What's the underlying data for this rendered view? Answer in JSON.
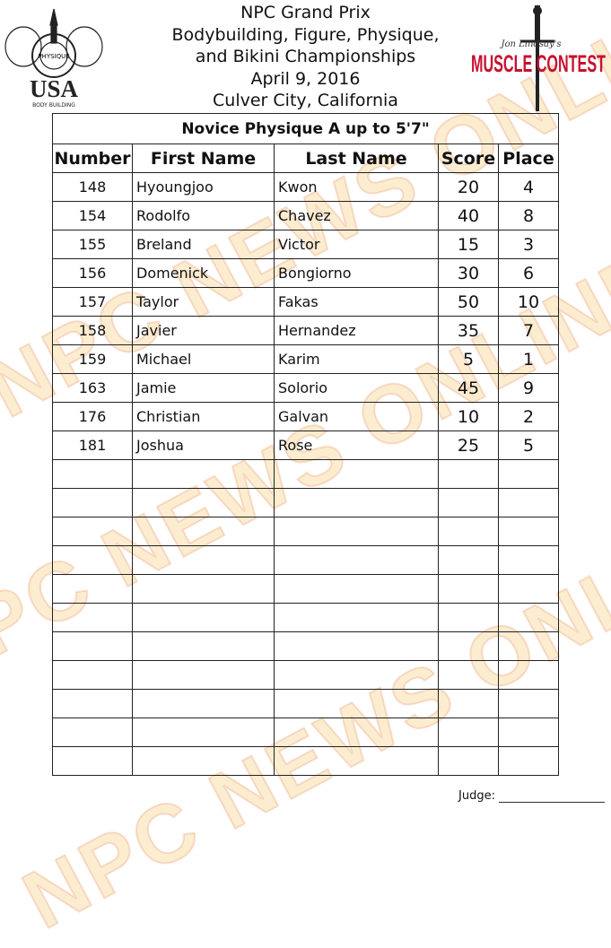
{
  "watermark": "NPC NEWS ONLINE",
  "logos": {
    "npc": {
      "ring_text": "NATIONAL PHYSIQUE COMMITTEE",
      "main": "USA",
      "sub": "BODY BUILDING"
    },
    "muscle_contest": {
      "script": "Jon Lindsay's",
      "main": "MUSCLE CONTEST"
    }
  },
  "header": {
    "line1": "NPC Grand Prix",
    "line2": "Bodybuilding, Figure, Physique,",
    "line3": "and Bikini Championships",
    "date": "April 9, 2016",
    "location": "Culver City, California"
  },
  "table": {
    "title": "Novice Physique A up to 5'7\"",
    "columns": [
      "Number",
      "First Name",
      "Last Name",
      "Score",
      "Place"
    ],
    "rows": [
      {
        "number": "148",
        "first": "Hyoungjoo",
        "last": "Kwon",
        "score": "20",
        "place": "4"
      },
      {
        "number": "154",
        "first": "Rodolfo",
        "last": "Chavez",
        "score": "40",
        "place": "8"
      },
      {
        "number": "155",
        "first": "Breland",
        "last": "Victor",
        "score": "15",
        "place": "3"
      },
      {
        "number": "156",
        "first": "Domenick",
        "last": "Bongiorno",
        "score": "30",
        "place": "6"
      },
      {
        "number": "157",
        "first": "Taylor",
        "last": "Fakas",
        "score": "50",
        "place": "10"
      },
      {
        "number": "158",
        "first": "Javier",
        "last": "Hernandez",
        "score": "35",
        "place": "7"
      },
      {
        "number": "159",
        "first": "Michael",
        "last": "Karim",
        "score": "5",
        "place": "1"
      },
      {
        "number": "163",
        "first": "Jamie",
        "last": "Solorio",
        "score": "45",
        "place": "9"
      },
      {
        "number": "176",
        "first": "Christian",
        "last": "Galvan",
        "score": "10",
        "place": "2"
      },
      {
        "number": "181",
        "first": "Joshua",
        "last": "Rose",
        "score": "25",
        "place": "5"
      }
    ],
    "empty_rows": 11
  },
  "footer": {
    "judge_label": "Judge:"
  }
}
